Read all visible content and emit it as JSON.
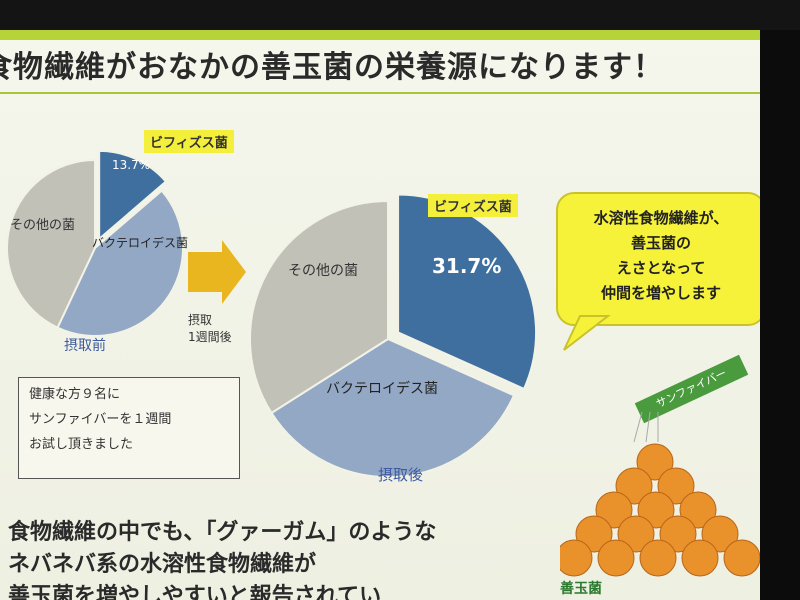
{
  "slide": {
    "title": "食物繊維がおなかの善玉菌の栄養源になります！"
  },
  "chart_data": [
    {
      "type": "pie",
      "caption": "摂取前",
      "slices": [
        {
          "label": "ビフィズス菌",
          "value": 13.7,
          "color": "#3f6f9f"
        },
        {
          "label": "バクテロイデス菌",
          "value": 43.3,
          "color": "#93a8c5"
        },
        {
          "label": "その他の菌",
          "value": 43.0,
          "color": "#c2c1b8"
        }
      ],
      "label_percent": "13.7%"
    },
    {
      "type": "pie",
      "caption": "摂取後",
      "slices": [
        {
          "label": "ビフィズス菌",
          "value": 31.7,
          "color": "#3f6f9f"
        },
        {
          "label": "バクテロイデス菌",
          "value": 34.3,
          "color": "#93a8c5"
        },
        {
          "label": "その他の菌",
          "value": 34.0,
          "color": "#c2c1b8"
        }
      ],
      "label_percent": "31.7%"
    }
  ],
  "arrow": {
    "label_line1": "摂取",
    "label_line2": "1週間後"
  },
  "note": {
    "line1": "健康な方９名に",
    "line2": "サンファイバーを１週間",
    "line3": "お試し頂きました"
  },
  "bubble": {
    "line1": "水溶性食物繊維が、",
    "line2": "善玉菌の",
    "line3": "えさとなって",
    "line4": "仲間を増やします"
  },
  "bottom": {
    "line1": "食物繊維の中でも、「グァーガム」のような",
    "line2": "ネバネバ系の水溶性食物繊維が",
    "line3": "善玉菌を増やしやすいと報告されてい"
  },
  "illustration": {
    "packet_label": "サンファイバー",
    "footer_label": "善玉菌"
  },
  "colors": {
    "accent_green": "#b6d33a",
    "bifidus_blue": "#3f6f9f",
    "bacteroides_blue": "#93a8c5",
    "other_gray": "#c2c1b8",
    "highlight_yellow": "#f4ef3a"
  }
}
